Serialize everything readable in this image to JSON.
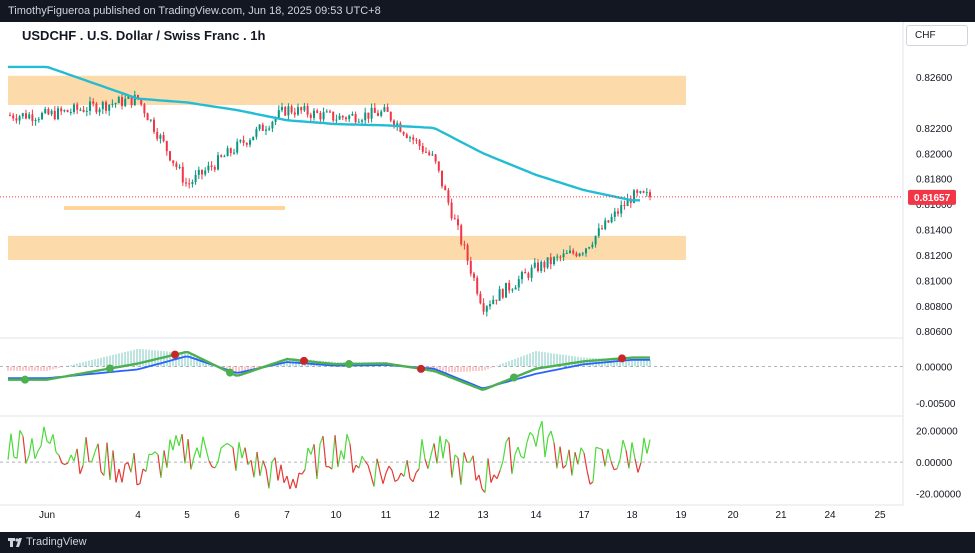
{
  "header": {
    "publish_text": "TimothyFigueroa published on TradingView.com, Jun 18, 2025 09:53 UTC+8"
  },
  "chart": {
    "title": "USDCHF . U.S. Dollar / Swiss Franc . 1h",
    "currency_button": "CHF",
    "current_price_label": "0.81657"
  },
  "footer": {
    "brand": "TradingView"
  },
  "colors": {
    "zone": "#fdd49a",
    "ma": "#22bcd3",
    "up": "#089981",
    "down": "#f23645",
    "current_price": "#f23645"
  },
  "chart_data": [
    {
      "type": "candlestick",
      "title": "USDCHF . U.S. Dollar / Swiss Franc . 1h",
      "price_axis_ticks": [
        "0.82600",
        "0.82200",
        "0.82000",
        "0.81800",
        "0.81600",
        "0.81400",
        "0.81200",
        "0.81000",
        "0.80800",
        "0.80600"
      ],
      "time_axis_ticks": [
        "Jun",
        "4",
        "5",
        "6",
        "7",
        "10",
        "11",
        "12",
        "13",
        "14",
        "17",
        "18",
        "19",
        "20",
        "21",
        "24",
        "25"
      ],
      "current_price": 0.81657,
      "ylim": [
        0.8057,
        0.8275
      ],
      "zones": [
        {
          "label": "",
          "from": 0.8238,
          "to": 0.8261
        },
        {
          "label": "",
          "from": 0.8116,
          "to": 0.8135
        }
      ],
      "support_line": {
        "level": 0.8157,
        "from_x": "Jun",
        "to_x": "7"
      },
      "series": [
        {
          "kind": "moving-average",
          "x": [
            "Jun",
            "4",
            "5",
            "6",
            "7",
            "10",
            "11",
            "12",
            "13",
            "14",
            "17",
            "18"
          ],
          "values": [
            0.8268,
            0.8243,
            0.824,
            0.8234,
            0.8226,
            0.8223,
            0.8222,
            0.822,
            0.82,
            0.8183,
            0.8171,
            0.8163
          ]
        },
        {
          "kind": "close",
          "x": [
            "Jun",
            "4",
            "5",
            "6",
            "7",
            "10",
            "11",
            "12",
            "13",
            "14",
            "17",
            "18"
          ],
          "values": [
            0.823,
            0.8243,
            0.8175,
            0.8205,
            0.8235,
            0.8228,
            0.8232,
            0.8195,
            0.808,
            0.811,
            0.8125,
            0.8166
          ]
        }
      ]
    },
    {
      "type": "line",
      "price_axis_ticks": [
        "0.00000",
        "-0.00500"
      ],
      "ylim": [
        -0.0062,
        0.0036
      ],
      "series": [
        {
          "kind": "macd",
          "x": [
            "Jun",
            "4",
            "5",
            "6",
            "7",
            "10",
            "11",
            "12",
            "13",
            "14",
            "17",
            "18"
          ],
          "values": [
            -0.0018,
            0.0004,
            0.002,
            -0.0013,
            0.001,
            0.0003,
            0.0004,
            -0.0006,
            -0.0032,
            -0.0003,
            0.0007,
            0.0012
          ]
        },
        {
          "kind": "signal",
          "x": [
            "Jun",
            "4",
            "5",
            "6",
            "7",
            "10",
            "11",
            "12",
            "13",
            "14",
            "17",
            "18"
          ],
          "values": [
            -0.0016,
            -0.0004,
            0.0014,
            -0.0009,
            0.0006,
            0.0001,
            0.0002,
            -0.0003,
            -0.003,
            -0.001,
            0.0003,
            0.0009
          ]
        }
      ]
    },
    {
      "type": "line",
      "price_axis_ticks": [
        "20.00000",
        "0.00000",
        "-20.00000"
      ],
      "ylim": [
        -24,
        28
      ],
      "series": [
        {
          "kind": "oscillator",
          "x": [
            "Jun",
            "4",
            "5",
            "6",
            "7",
            "10",
            "11",
            "12",
            "13",
            "14",
            "17",
            "18"
          ],
          "values": [
            12,
            -6,
            8,
            4,
            -12,
            10,
            -8,
            6,
            -10,
            18,
            -4,
            6
          ]
        }
      ]
    }
  ]
}
